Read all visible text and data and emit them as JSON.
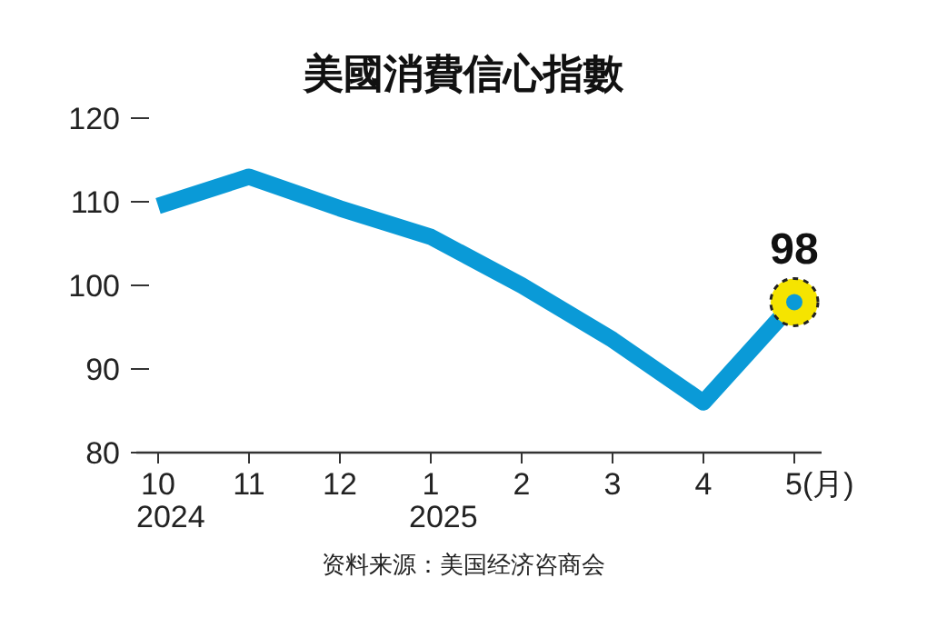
{
  "chart_data": {
    "type": "line",
    "title": "美國消費信心指數",
    "categories": [
      "10\n2024",
      "11",
      "12",
      "1\n2025",
      "2",
      "3",
      "4",
      "5(月)"
    ],
    "series": [
      {
        "color": "#0a9ad7",
        "values": [
          109.5,
          113,
          109.2,
          105.8,
          100,
          93.5,
          86,
          98
        ],
        "value_labels": [
          null,
          null,
          null,
          null,
          null,
          null,
          null,
          "98"
        ]
      }
    ],
    "ylim": [
      80,
      120
    ],
    "yticks": [
      80,
      90,
      100,
      110,
      120
    ],
    "grid": false,
    "marker": "none",
    "line_style": "solid",
    "annotations": [
      "资料来源：美国经济咨商会"
    ]
  }
}
